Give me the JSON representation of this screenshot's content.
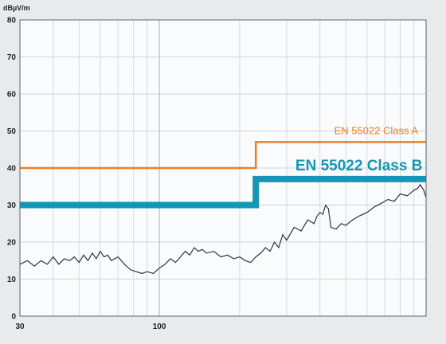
{
  "chart_data": {
    "type": "line",
    "title": "",
    "xlabel": "",
    "ylabel": "dBµV/m",
    "x_scale": "log",
    "xlim": [
      30,
      1000
    ],
    "ylim": [
      0,
      80
    ],
    "y_ticks": [
      0,
      10,
      20,
      30,
      40,
      50,
      60,
      70,
      80
    ],
    "x_tick_labels": [
      {
        "value": 30,
        "label": "30"
      },
      {
        "value": 100,
        "label": "100"
      }
    ],
    "grid": true,
    "series": [
      {
        "name": "EN 55022 Class A",
        "color": "#f07e22",
        "style": "step",
        "x": [
          30,
          230,
          230,
          1000
        ],
        "y": [
          40,
          40,
          47,
          47
        ]
      },
      {
        "name": "EN 55022 Class B",
        "color": "#1496b4",
        "style": "step",
        "x": [
          30,
          230,
          230,
          1000
        ],
        "y": [
          30,
          30,
          37,
          37
        ]
      },
      {
        "name": "",
        "color": "#2b3446",
        "style": "line",
        "x": [
          30,
          32,
          34,
          36,
          38,
          40,
          42,
          44,
          46,
          48,
          50,
          52,
          54,
          56,
          58,
          60,
          62,
          64,
          66,
          70,
          74,
          78,
          82,
          86,
          90,
          95,
          100,
          105,
          110,
          115,
          120,
          125,
          130,
          135,
          140,
          145,
          150,
          160,
          170,
          180,
          190,
          200,
          210,
          220,
          230,
          240,
          250,
          260,
          270,
          280,
          290,
          300,
          320,
          340,
          360,
          380,
          390,
          400,
          410,
          420,
          430,
          440,
          460,
          480,
          500,
          530,
          560,
          600,
          640,
          680,
          720,
          760,
          800,
          850,
          900,
          930,
          950,
          980,
          1000
        ],
        "y": [
          14,
          15,
          13.5,
          15,
          14,
          16,
          14,
          15.5,
          15,
          16,
          14.5,
          16.5,
          15,
          17,
          15.5,
          17.5,
          16,
          16.5,
          15,
          16,
          14,
          12.5,
          12,
          11.5,
          12,
          11.5,
          13,
          14,
          15.5,
          14.5,
          16,
          17.5,
          16.5,
          18.5,
          17.5,
          18,
          17,
          17.5,
          16,
          16.5,
          15.5,
          16,
          15,
          14.5,
          16,
          17,
          18.5,
          17.5,
          20,
          18.5,
          22,
          20.5,
          24,
          23,
          26,
          25,
          27,
          28,
          27.5,
          30,
          29,
          24,
          23.5,
          25,
          24.5,
          26,
          27,
          28,
          29.5,
          30.5,
          31.5,
          31,
          33,
          32.5,
          34,
          34.5,
          35.5,
          34,
          32
        ]
      }
    ]
  }
}
